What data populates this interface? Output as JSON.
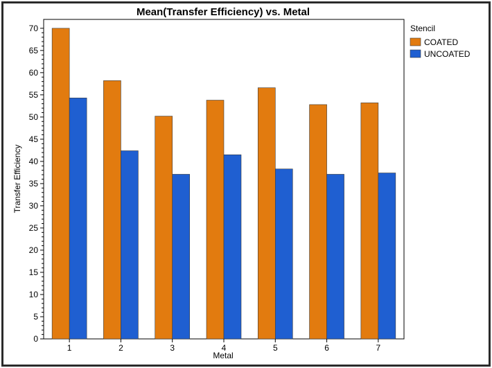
{
  "chart_data": {
    "type": "bar",
    "title": "Mean(Transfer Efficiency) vs. Metal",
    "xlabel": "Metal",
    "ylabel": "Transfer Efficiency",
    "categories": [
      "1",
      "2",
      "3",
      "4",
      "5",
      "6",
      "7"
    ],
    "series": [
      {
        "name": "COATED",
        "color": "#e27b0f",
        "values": [
          70.0,
          58.2,
          50.2,
          53.8,
          56.6,
          52.8,
          53.2
        ]
      },
      {
        "name": "UNCOATED",
        "color": "#1f5fd1",
        "values": [
          54.3,
          42.4,
          37.1,
          41.5,
          38.3,
          37.1,
          37.4
        ]
      }
    ],
    "ylim": [
      0,
      72
    ],
    "yticks": [
      0,
      5,
      10,
      15,
      20,
      25,
      30,
      35,
      40,
      45,
      50,
      55,
      60,
      65,
      70
    ],
    "legend": {
      "title": "Stencil",
      "placement": "right"
    },
    "grid": false
  }
}
